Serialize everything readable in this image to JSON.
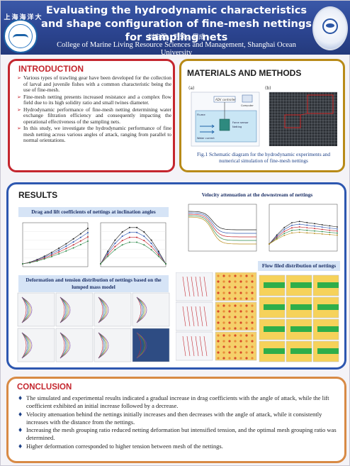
{
  "header": {
    "title": "Evaluating the hydrodynamic characteristics and shape configuration of fine-mesh nettings for sampling nets",
    "authors": "刘志强，万荣，周成",
    "affiliation": "College of Marine Living Resource Sciences and Management, Shanghai Ocean University",
    "logo_left_text": "上海海洋大学"
  },
  "introduction": {
    "title": "INTRODUCTION",
    "bullets": [
      "Various types of trawling gear have been developed for the collection of larval and juvenile fishes with a common characteristic being the use of fine-mesh.",
      "Fine-mesh netting presents increased resistance and a complex flow field due to its high solidity ratio and small twines diameter.",
      "Hydrodynamic performance of fine-mesh netting determining water exchange filtration efficiency and consequently impacting the operational effectiveness of the sampling nets.",
      "In this study, we investigate the hydrodynamic performance of fine mesh netting across various angles of attack, ranging from parallel to normal orientations."
    ]
  },
  "materials": {
    "title": "MATERIALS AND METHODS",
    "caption": "Fig.1 Schematic diagram for the hydrodynamic experiments and numerical simulation of fine-mesh nettings",
    "panel_a": "(a)",
    "panel_b": "(b)",
    "labels": [
      "ADV controller",
      "Computer",
      "Flume",
      "Water current",
      "Force sensor",
      "Netting"
    ]
  },
  "results": {
    "title": "RESULTS",
    "drag_lift_title": "Drag and lift coefficients of nettings at inclination angles",
    "velocity_title": "Velocity attenuation at the downstream of nettings",
    "deformation_title": "Deformation and tension distribution of nettings based on the lumped mass model",
    "flow_title": "Flow filed distribution of nettings"
  },
  "conclusion": {
    "title": "CONCLUSION",
    "bullets": [
      "The simulated and experimental results indicated a gradual increase in drag coefficients with the angle of attack, while the lift coefficient exhibited an initial increase followed by a decrease.",
      "Velocity attenuation behind the nettings initially increases and then decreases with the angle of attack, while it consistently increases with the distance from the nettings.",
      "Increasing the mesh grouping ratio reduced netting deformation but intensified tension, and the optimal mesh grouping ratio was determined.",
      "Higher deformation corresponded to higher tension between mesh of the nettings."
    ]
  },
  "colors": {
    "header_blue": "#2c4591",
    "intro_border": "#c4262e",
    "materials_border": "#b88a17",
    "results_border": "#2d57b0",
    "conclusion_border": "#d88a45"
  }
}
